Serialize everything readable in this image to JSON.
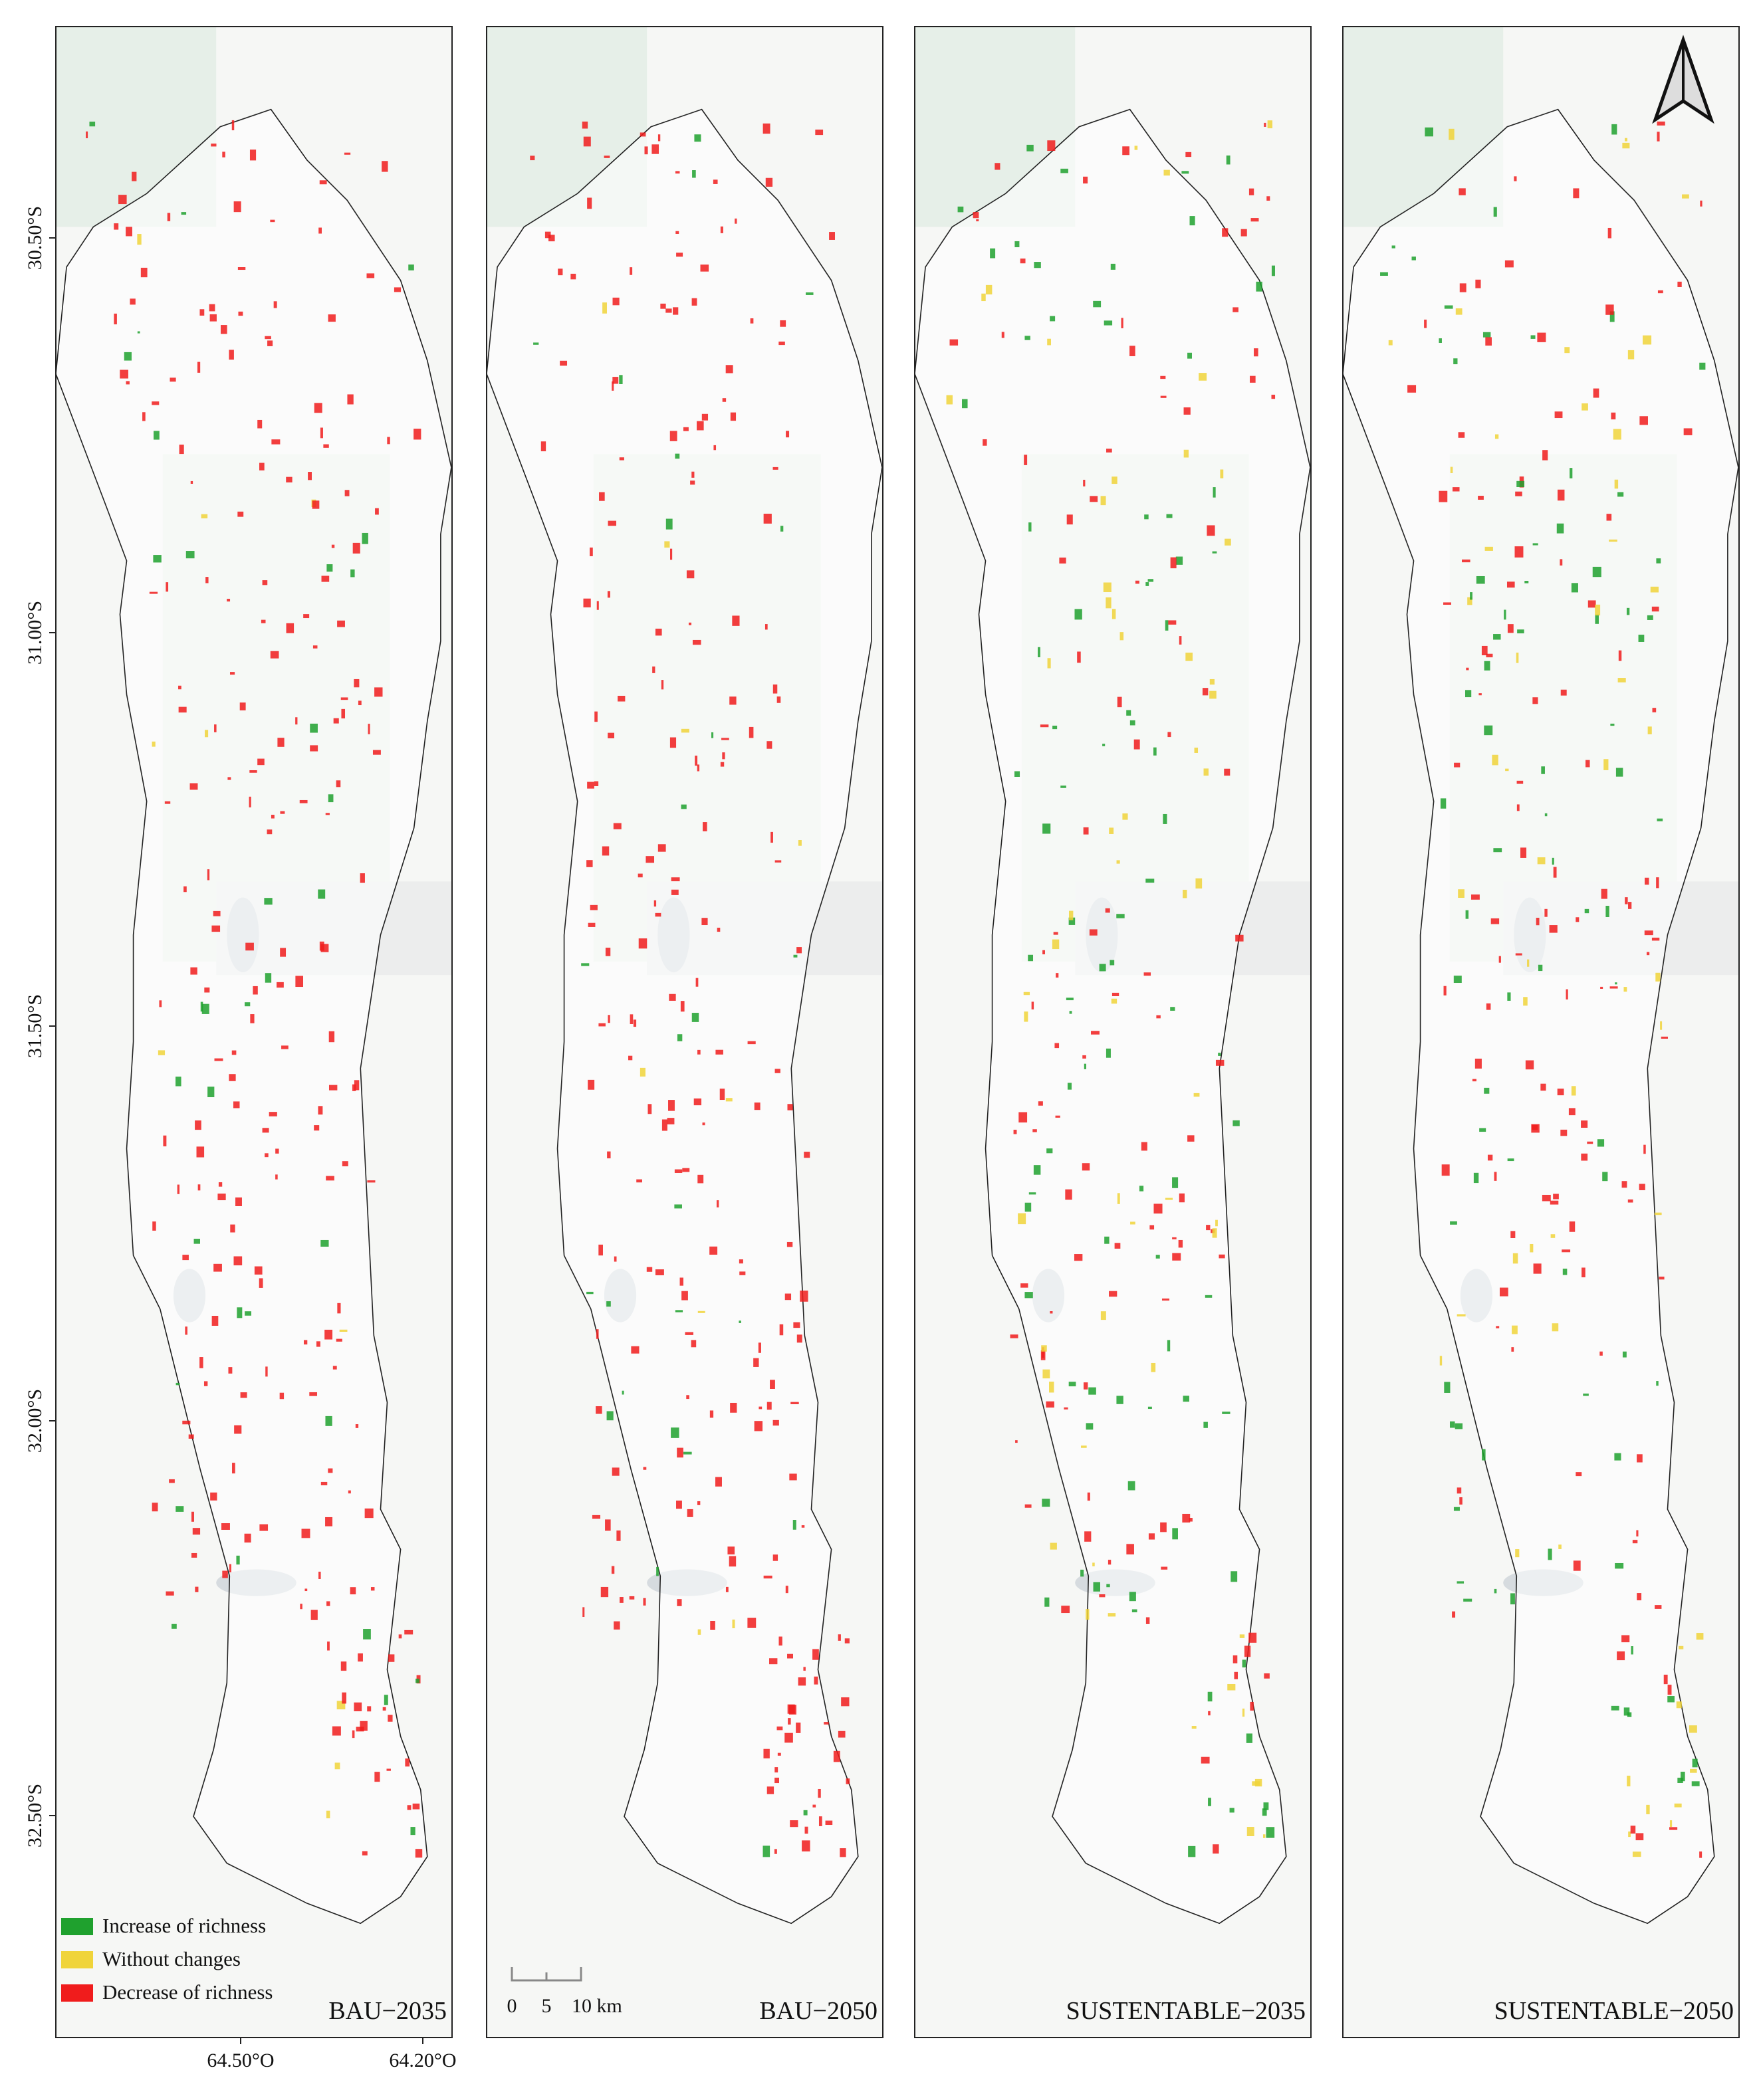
{
  "panels": [
    {
      "label": "BAU−2035"
    },
    {
      "label": "BAU−2050"
    },
    {
      "label": "SUSTENTABLE−2035"
    },
    {
      "label": "SUSTENTABLE−2050"
    }
  ],
  "y_axis": {
    "ticks": [
      "30.50°S",
      "31.00°S",
      "31.50°S",
      "32.00°S",
      "32.50°S"
    ]
  },
  "x_axis": {
    "ticks": [
      "64.50°O",
      "64.20°O"
    ]
  },
  "legend": {
    "items": [
      {
        "label": "Increase of richness",
        "color": "#1fa12e"
      },
      {
        "label": "Without changes",
        "color": "#f0d43a"
      },
      {
        "label": "Decrease of richness",
        "color": "#f01c1c"
      }
    ]
  },
  "scale_bar": {
    "labels": [
      "0",
      "5",
      "10 km"
    ]
  }
}
